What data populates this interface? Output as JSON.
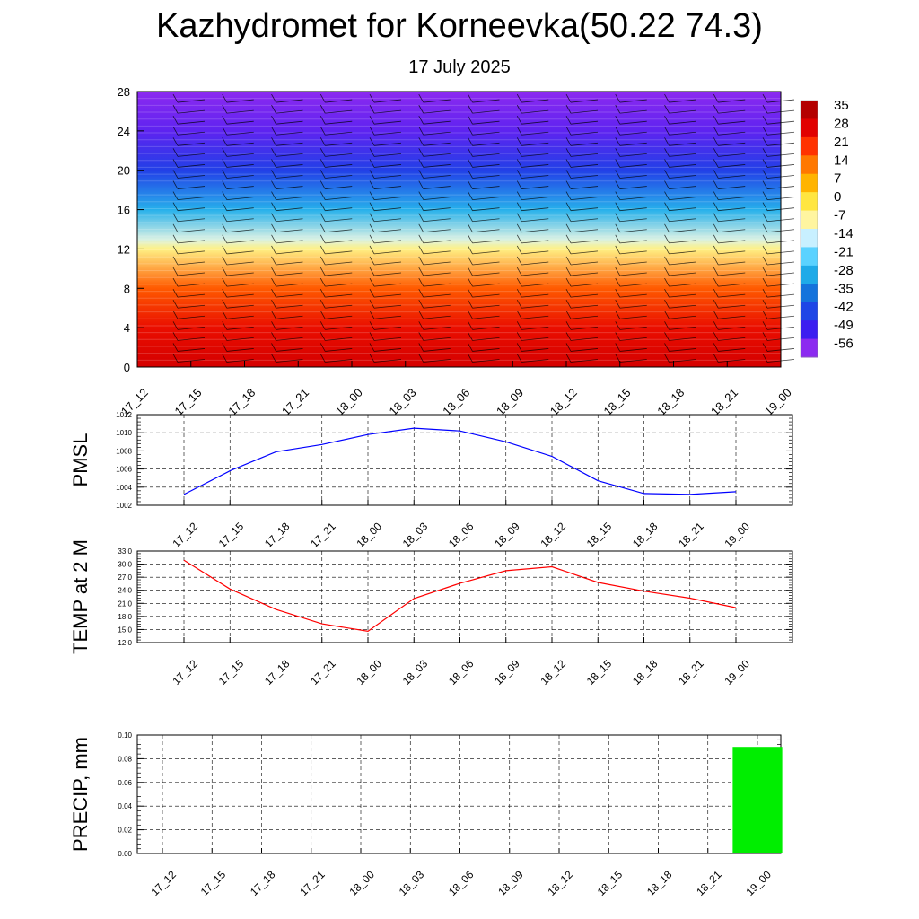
{
  "header": {
    "title": "Kazhydromet for Korneevka(50.22 74.3)",
    "date": "17 July 2025"
  },
  "chart_data": [
    {
      "type": "heatmap",
      "x_ticks": [
        "17_12",
        "17_15",
        "17_18",
        "17_21",
        "18_00",
        "18_03",
        "18_06",
        "18_09",
        "18_12",
        "18_15",
        "18_18",
        "18_21",
        "19_00"
      ],
      "y_ticks": [
        0,
        4,
        8,
        12,
        16,
        20,
        24,
        28
      ],
      "ylim": [
        0,
        28
      ],
      "colorbar": {
        "labels": [
          35,
          28,
          21,
          14,
          7,
          0,
          -7,
          -14,
          -21,
          -28,
          -35,
          -42,
          -49,
          -56
        ],
        "colors": [
          "#b40000",
          "#e10000",
          "#ff3200",
          "#ff7800",
          "#ffb400",
          "#ffe640",
          "#fff5a0",
          "#c8f0ff",
          "#5ad2ff",
          "#1eaae8",
          "#1473dc",
          "#1e46e6",
          "#3c1ef0",
          "#8c2af0"
        ]
      },
      "temperature_profile": [
        {
          "h": 0,
          "t": 30
        },
        {
          "h": 4,
          "t": 26
        },
        {
          "h": 8,
          "t": 17
        },
        {
          "h": 12,
          "t": -5
        },
        {
          "h": 13,
          "t": -12
        },
        {
          "h": 16,
          "t": -27
        },
        {
          "h": 20,
          "t": -43
        },
        {
          "h": 24,
          "t": -52
        },
        {
          "h": 28,
          "t": -56
        }
      ]
    },
    {
      "type": "line",
      "ylabel": "PMSL",
      "categories": [
        "17_12",
        "17_15",
        "17_18",
        "17_21",
        "18_00",
        "18_03",
        "18_06",
        "18_09",
        "18_12",
        "18_15",
        "18_18",
        "18_21",
        "19_00"
      ],
      "y_ticks": [
        1002,
        1004,
        1006,
        1008,
        1010,
        1012
      ],
      "ylim": [
        1002,
        1012
      ],
      "color": "#0000ff",
      "values": [
        1003.2,
        1005.8,
        1007.9,
        1008.7,
        1009.8,
        1010.5,
        1010.2,
        1009.0,
        1007.4,
        1004.7,
        1003.3,
        1003.2,
        1003.5
      ]
    },
    {
      "type": "line",
      "ylabel": "TEMP at 2 M",
      "categories": [
        "17_12",
        "17_15",
        "17_18",
        "17_21",
        "18_00",
        "18_03",
        "18_06",
        "18_09",
        "18_12",
        "18_15",
        "18_18",
        "18_21",
        "19_00"
      ],
      "y_ticks": [
        "12.0",
        "15.0",
        "18.0",
        "21.0",
        "24.0",
        "27.0",
        "30.0",
        "33.0"
      ],
      "ylim": [
        12,
        33
      ],
      "color": "#ff0000",
      "values": [
        30.9,
        24.3,
        19.6,
        16.3,
        14.6,
        22.1,
        25.6,
        28.5,
        29.4,
        25.8,
        23.8,
        22.2,
        20.0
      ]
    },
    {
      "type": "bar",
      "ylabel": "PRECIP, mm",
      "categories": [
        "17_12",
        "17_15",
        "17_18",
        "17_21",
        "18_00",
        "18_03",
        "18_06",
        "18_09",
        "18_12",
        "18_15",
        "18_18",
        "18_21",
        "19_00"
      ],
      "y_ticks": [
        "0.00",
        "0.02",
        "0.04",
        "0.06",
        "0.08",
        "0.10"
      ],
      "ylim": [
        0,
        0.1
      ],
      "color": "#00ee00",
      "values": [
        0,
        0,
        0,
        0,
        0,
        0,
        0,
        0,
        0,
        0,
        0,
        0,
        0.09
      ]
    }
  ]
}
